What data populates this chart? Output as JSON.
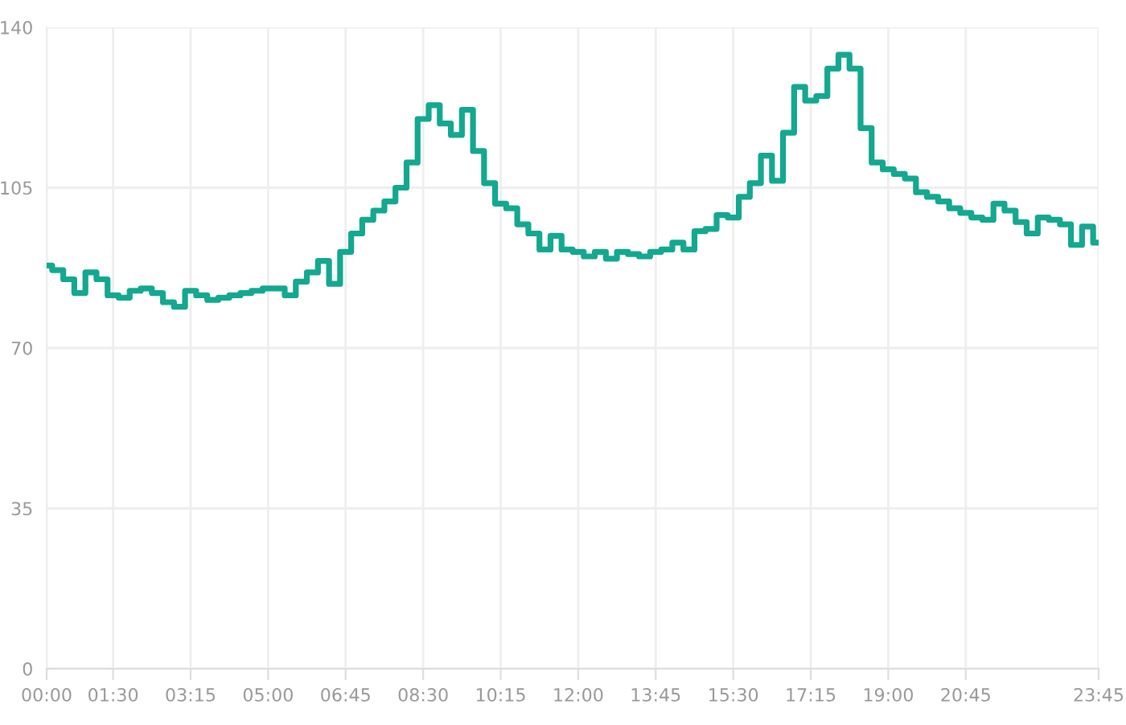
{
  "chart_data": {
    "type": "step",
    "x": [
      0,
      0.25,
      0.5,
      0.75,
      1,
      1.25,
      1.5,
      1.75,
      2,
      2.25,
      2.5,
      2.75,
      3,
      3.25,
      3.5,
      3.75,
      4,
      4.25,
      4.5,
      4.75,
      5,
      5.25,
      5.5,
      5.75,
      6,
      6.25,
      6.5,
      6.75,
      7,
      7.25,
      7.5,
      7.75,
      8,
      8.25,
      8.5,
      8.75,
      9,
      9.25,
      9.5,
      9.75,
      10,
      10.25,
      10.5,
      10.75,
      11,
      11.25,
      11.5,
      11.75,
      12,
      12.25,
      12.5,
      12.75,
      13,
      13.25,
      13.5,
      13.75,
      14,
      14.25,
      14.5,
      14.75,
      15,
      15.25,
      15.5,
      15.75,
      16,
      16.25,
      16.5,
      16.75,
      17,
      17.25,
      17.5,
      17.75,
      18,
      18.25,
      18.5,
      18.75,
      19,
      19.25,
      19.5,
      19.75,
      20,
      20.25,
      20.5,
      20.75,
      21,
      21.25,
      21.5,
      21.75,
      22,
      22.25,
      22.5,
      22.75,
      23,
      23.25,
      23.5,
      23.75
    ],
    "series": [
      {
        "color": "#13a88f",
        "values": [
          88,
          87,
          85,
          82,
          86.5,
          85,
          81.5,
          81,
          82.5,
          83,
          82,
          80,
          79,
          82.5,
          81.5,
          80.5,
          81,
          81.5,
          82,
          82.5,
          83,
          83,
          81.5,
          84.5,
          86.5,
          89,
          84,
          91,
          95,
          98,
          100,
          102,
          105,
          110.5,
          120,
          123,
          119,
          116.5,
          122,
          113,
          106,
          101.5,
          100.5,
          97,
          95,
          91.5,
          94.5,
          91.5,
          91,
          90,
          91,
          89.5,
          91,
          90.5,
          90,
          91,
          91.5,
          93,
          91.5,
          95.5,
          96,
          99,
          98.5,
          103,
          106,
          112,
          106.5,
          117,
          127,
          124,
          125,
          131,
          134,
          131,
          118,
          110.5,
          109,
          108,
          107,
          104,
          103,
          102,
          100.5,
          99.5,
          98.5,
          98,
          101.5,
          100,
          97.5,
          95,
          98.5,
          98,
          97,
          92.5,
          96.5,
          93
        ]
      }
    ],
    "xlim": [
      0,
      23.75
    ],
    "xticks": [
      {
        "value": 0,
        "label": "00:00"
      },
      {
        "value": 1.5,
        "label": "01:30"
      },
      {
        "value": 3.25,
        "label": "03:15"
      },
      {
        "value": 5,
        "label": "05:00"
      },
      {
        "value": 6.75,
        "label": "06:45"
      },
      {
        "value": 8.5,
        "label": "08:30"
      },
      {
        "value": 10.25,
        "label": "10:15"
      },
      {
        "value": 12,
        "label": "12:00"
      },
      {
        "value": 13.75,
        "label": "13:45"
      },
      {
        "value": 15.5,
        "label": "15:30"
      },
      {
        "value": 17.25,
        "label": "17:15"
      },
      {
        "value": 19,
        "label": "19:00"
      },
      {
        "value": 20.75,
        "label": "20:45"
      },
      {
        "value": 23.75,
        "label": "23:45"
      }
    ],
    "ylim": [
      0,
      140
    ],
    "yticks": [
      0,
      35,
      70,
      105,
      140
    ],
    "grid": true,
    "legend": false
  }
}
